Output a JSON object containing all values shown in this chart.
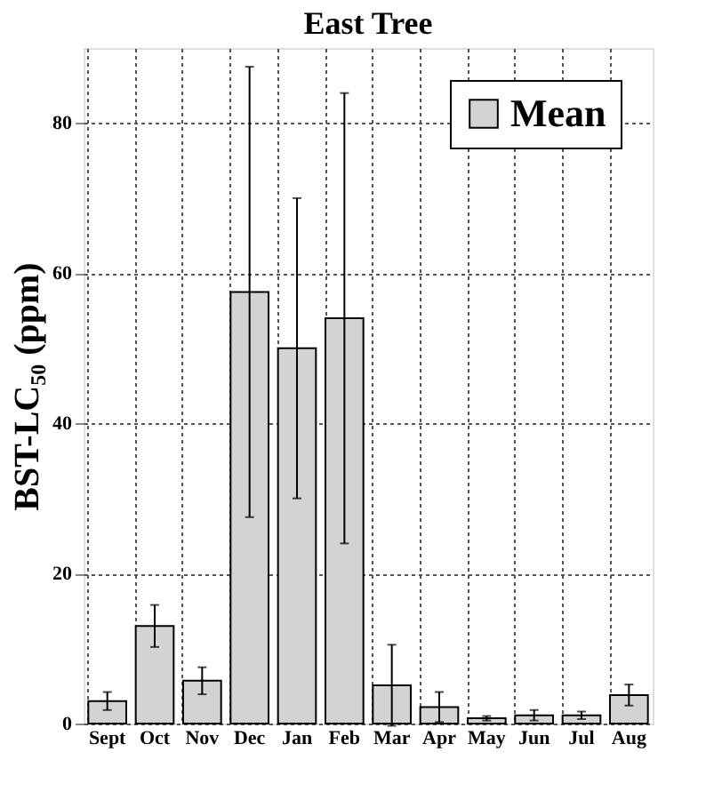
{
  "chart_data": {
    "type": "bar",
    "title": "East Tree",
    "ylabel": "BST-LC₅₀ (ppm)",
    "categories": [
      "Sept",
      "Oct",
      "Nov",
      "Dec",
      "Jan",
      "Feb",
      "Mar",
      "Apr",
      "May",
      "Jun",
      "Jul",
      "Aug"
    ],
    "series": [
      {
        "name": "Mean",
        "color": "#d3d3d3",
        "values": [
          3.0,
          13.0,
          5.7,
          57.5,
          50,
          54,
          5.1,
          2.2,
          0.7,
          1.1,
          1.1,
          3.8
        ],
        "errors": [
          1.2,
          2.8,
          1.8,
          30,
          20,
          30,
          5.4,
          2,
          0.3,
          0.7,
          0.5,
          1.4
        ]
      }
    ],
    "ylim": [
      0,
      90
    ],
    "yticks": [
      0,
      20,
      40,
      60,
      80
    ],
    "grid": true,
    "legend": "top right"
  }
}
